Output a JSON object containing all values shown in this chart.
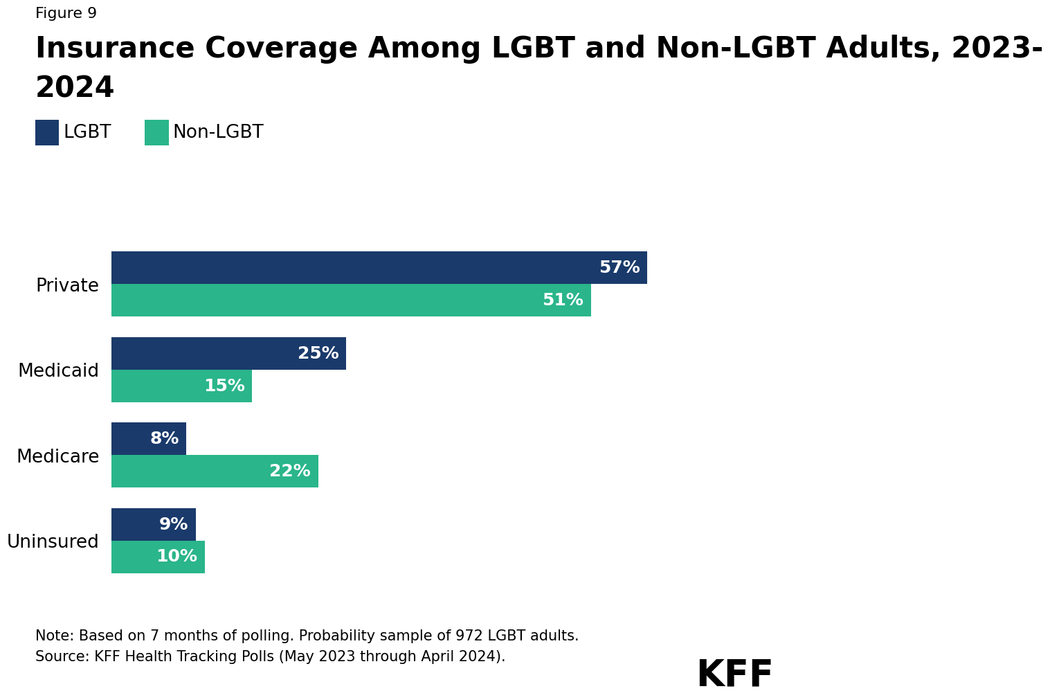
{
  "figure_label": "Figure 9",
  "title_line1": "Insurance Coverage Among LGBT and Non-LGBT Adults, 2023-",
  "title_line2": "2024",
  "categories": [
    "Private",
    "Medicaid",
    "Medicare",
    "Uninsured"
  ],
  "lgbt_values": [
    57,
    25,
    8,
    9
  ],
  "non_lgbt_values": [
    51,
    15,
    22,
    10
  ],
  "lgbt_color": "#1a3a6b",
  "non_lgbt_color": "#2ab58a",
  "legend_labels": [
    "LGBT",
    "Non-LGBT"
  ],
  "note_line1": "Note: Based on 7 months of polling. Probability sample of 972 LGBT adults.",
  "note_line2": "Source: KFF Health Tracking Polls (May 2023 through April 2024).",
  "kff_label": "KFF",
  "background_color": "#ffffff",
  "bar_height": 0.38,
  "xlim": [
    0,
    70
  ],
  "category_fontsize": 19,
  "title_fontsize": 30,
  "figure_label_fontsize": 16,
  "note_fontsize": 15,
  "bar_label_fontsize": 18,
  "legend_fontsize": 19
}
